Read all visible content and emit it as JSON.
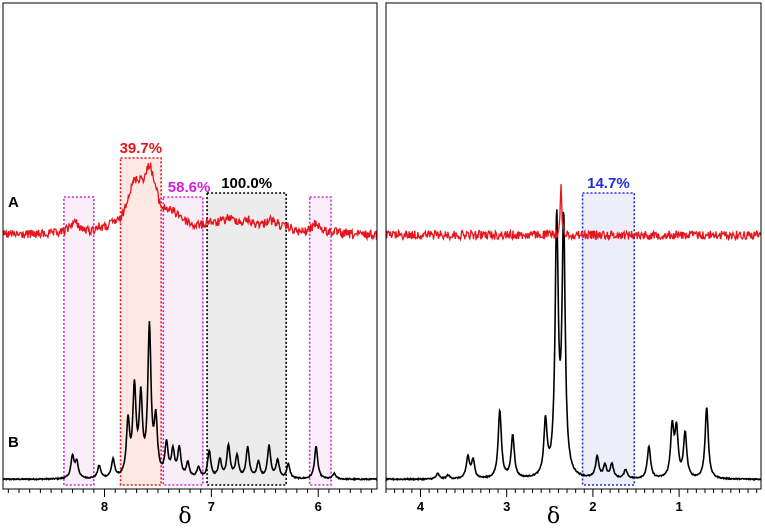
{
  "chart_data": [
    {
      "type": "line",
      "panel": "aromatic",
      "xlabel": "δ",
      "xlim": [
        8.95,
        5.45
      ],
      "x_reversed": true,
      "xticks": [
        8,
        7,
        6
      ],
      "series_labels": {
        "A": "A",
        "B": "B"
      },
      "colors": {
        "A": "#e8141b",
        "B": "#000000"
      },
      "peaks_B": [
        {
          "ppm": 8.3,
          "h": 0.12
        },
        {
          "ppm": 8.26,
          "h": 0.09
        },
        {
          "ppm": 8.05,
          "h": 0.07
        },
        {
          "ppm": 7.92,
          "h": 0.1
        },
        {
          "ppm": 7.78,
          "h": 0.3
        },
        {
          "ppm": 7.72,
          "h": 0.48
        },
        {
          "ppm": 7.66,
          "h": 0.42
        },
        {
          "ppm": 7.58,
          "h": 0.82
        },
        {
          "ppm": 7.52,
          "h": 0.3
        },
        {
          "ppm": 7.42,
          "h": 0.18
        },
        {
          "ppm": 7.36,
          "h": 0.14
        },
        {
          "ppm": 7.3,
          "h": 0.16
        },
        {
          "ppm": 7.22,
          "h": 0.08
        },
        {
          "ppm": 7.12,
          "h": 0.06
        },
        {
          "ppm": 7.02,
          "h": 0.15
        },
        {
          "ppm": 6.92,
          "h": 0.1
        },
        {
          "ppm": 6.84,
          "h": 0.18
        },
        {
          "ppm": 6.76,
          "h": 0.12
        },
        {
          "ppm": 6.66,
          "h": 0.17
        },
        {
          "ppm": 6.56,
          "h": 0.09
        },
        {
          "ppm": 6.46,
          "h": 0.18
        },
        {
          "ppm": 6.38,
          "h": 0.1
        },
        {
          "ppm": 6.28,
          "h": 0.08
        },
        {
          "ppm": 6.02,
          "h": 0.18
        },
        {
          "ppm": 5.85,
          "h": 0.03
        }
      ],
      "regions": [
        {
          "label": "",
          "from": 8.38,
          "to": 8.1,
          "color": "#c030c8",
          "fill": "#fbeefb"
        },
        {
          "label": "39.7%",
          "from": 7.85,
          "to": 7.47,
          "color": "#e8141b",
          "fill": "#fde8e4"
        },
        {
          "label": "58.6%",
          "from": 7.45,
          "to": 7.08,
          "color": "#d020d8",
          "fill": "#f8eef8"
        },
        {
          "label": "100.0%",
          "from": 7.04,
          "to": 6.3,
          "color": "#000000",
          "fill": "#ececec"
        },
        {
          "label": "",
          "from": 6.08,
          "to": 5.88,
          "color": "#c030c8",
          "fill": "#fbeefb"
        }
      ]
    },
    {
      "type": "line",
      "panel": "aliphatic",
      "xlabel": "δ",
      "xlim": [
        4.4,
        0.05
      ],
      "x_reversed": true,
      "xticks": [
        4,
        3,
        2,
        1
      ],
      "colors": {
        "A": "#e8141b",
        "B": "#000000"
      },
      "peaks_A": [
        {
          "ppm": 2.37,
          "h": 0.45
        }
      ],
      "peaks_B": [
        {
          "ppm": 3.8,
          "h": 0.03
        },
        {
          "ppm": 3.68,
          "h": 0.02
        },
        {
          "ppm": 3.45,
          "h": 0.12
        },
        {
          "ppm": 3.39,
          "h": 0.1
        },
        {
          "ppm": 3.08,
          "h": 0.38
        },
        {
          "ppm": 2.93,
          "h": 0.24
        },
        {
          "ppm": 2.55,
          "h": 0.3
        },
        {
          "ppm": 2.42,
          "h": 1.4
        },
        {
          "ppm": 2.34,
          "h": 1.4
        },
        {
          "ppm": 1.95,
          "h": 0.12
        },
        {
          "ppm": 1.86,
          "h": 0.07
        },
        {
          "ppm": 1.78,
          "h": 0.08
        },
        {
          "ppm": 1.62,
          "h": 0.05
        },
        {
          "ppm": 1.35,
          "h": 0.18
        },
        {
          "ppm": 1.08,
          "h": 0.28
        },
        {
          "ppm": 1.03,
          "h": 0.26
        },
        {
          "ppm": 0.93,
          "h": 0.25
        },
        {
          "ppm": 0.68,
          "h": 0.4
        }
      ],
      "regions": [
        {
          "label": "14.7%",
          "from": 2.12,
          "to": 1.52,
          "color": "#1f2ed8",
          "fill": "#eeeefa"
        }
      ]
    }
  ]
}
